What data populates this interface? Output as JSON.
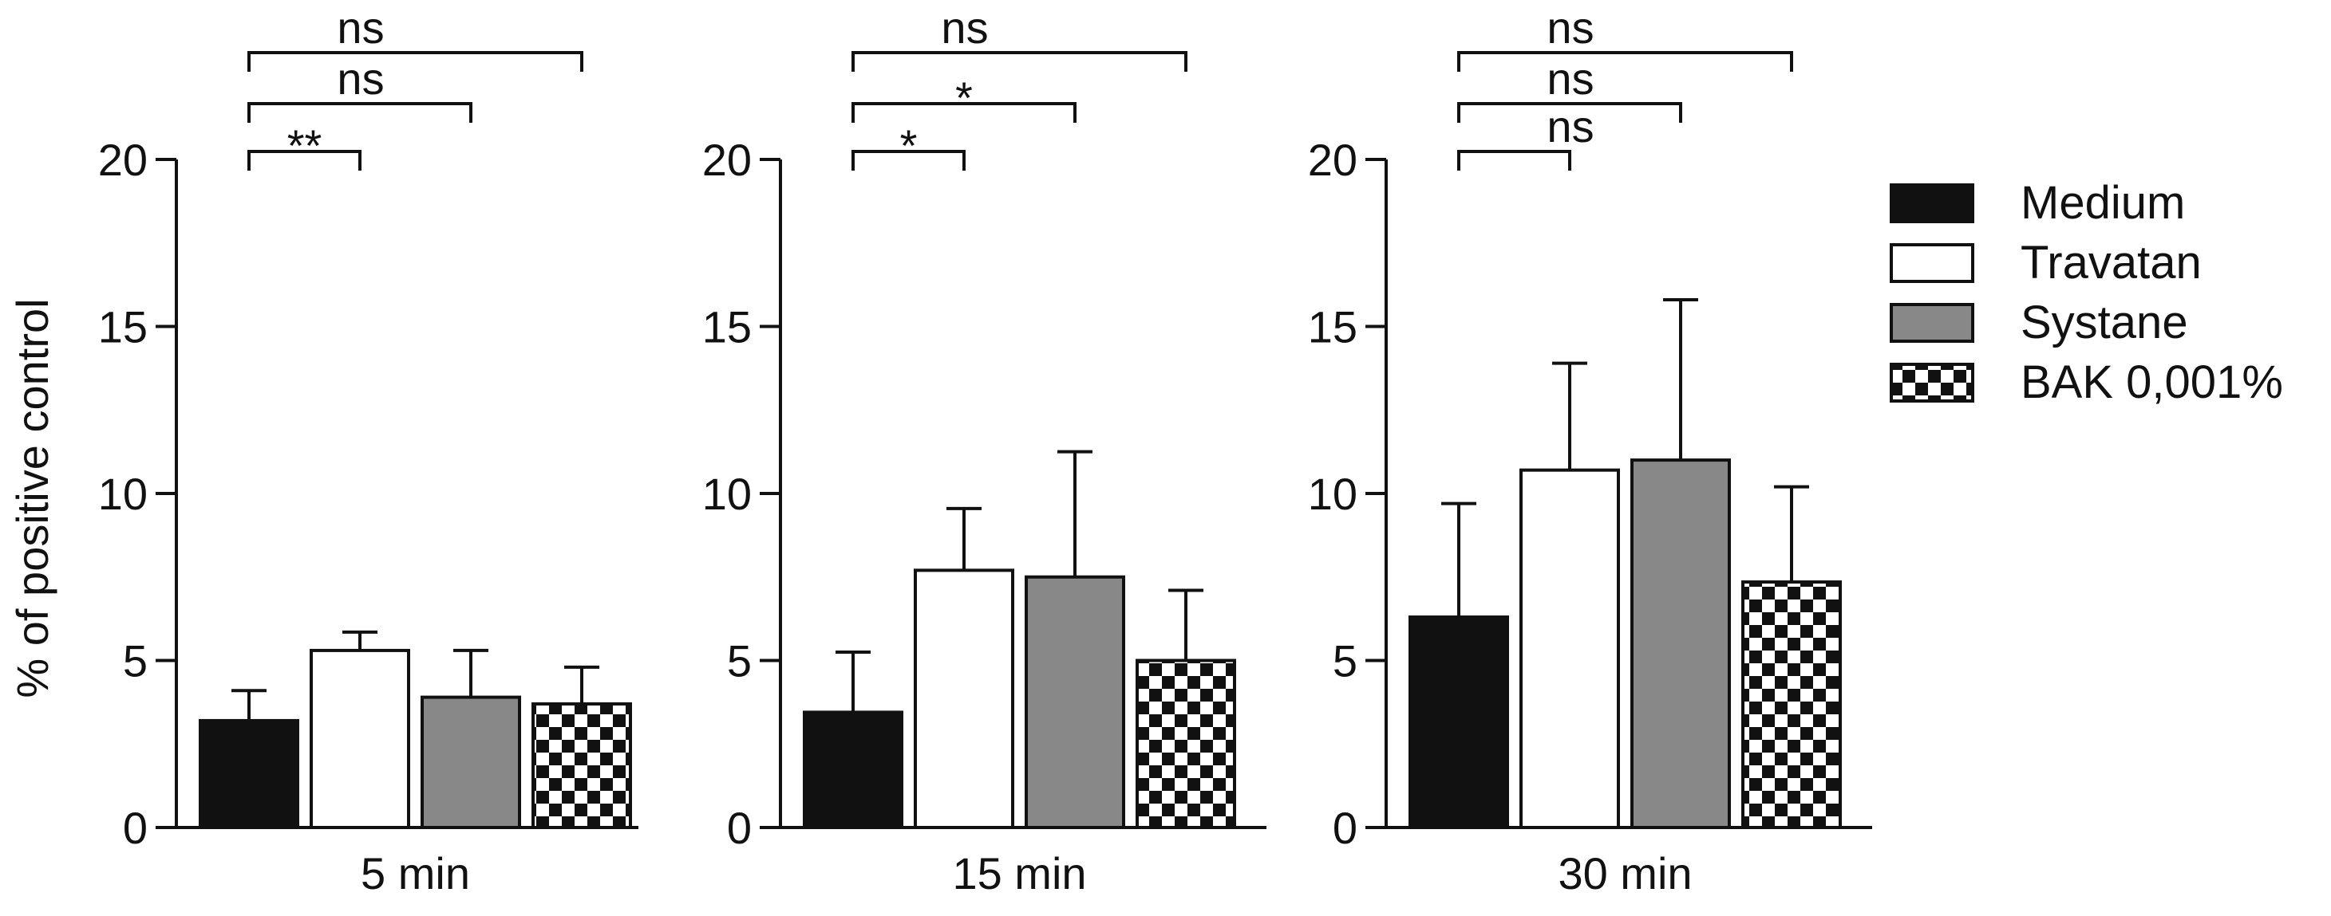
{
  "chart_data": [
    {
      "type": "bar",
      "title": "",
      "xlabel": "5 min",
      "ylabel": "% of positive control",
      "ylim": [
        0,
        20
      ],
      "yticks": [
        0,
        5,
        10,
        15,
        20
      ],
      "categories": [
        "Medium",
        "Travatan",
        "Systane",
        "BAK 0,001%"
      ],
      "series": [
        {
          "name": "mean",
          "values": [
            3.2,
            5.3,
            3.9,
            3.7
          ]
        },
        {
          "name": "error",
          "values": [
            0.9,
            0.55,
            1.4,
            1.1
          ]
        }
      ],
      "comparisons": [
        {
          "from": "Medium",
          "to": "Travatan",
          "label": "**"
        },
        {
          "from": "Medium",
          "to": "Systane",
          "label": "ns"
        },
        {
          "from": "Medium",
          "to": "BAK 0,001%",
          "label": "ns"
        }
      ]
    },
    {
      "type": "bar",
      "title": "",
      "xlabel": "15 min",
      "ylabel": "",
      "ylim": [
        0,
        20
      ],
      "yticks": [
        0,
        5,
        10,
        15,
        20
      ],
      "categories": [
        "Medium",
        "Travatan",
        "Systane",
        "BAK 0,001%"
      ],
      "series": [
        {
          "name": "mean",
          "values": [
            3.45,
            7.7,
            7.5,
            5.0
          ]
        },
        {
          "name": "error",
          "values": [
            1.8,
            1.85,
            3.75,
            2.1
          ]
        }
      ],
      "comparisons": [
        {
          "from": "Medium",
          "to": "Travatan",
          "label": "*"
        },
        {
          "from": "Medium",
          "to": "Systane",
          "label": "*"
        },
        {
          "from": "Medium",
          "to": "BAK 0,001%",
          "label": "ns"
        }
      ]
    },
    {
      "type": "bar",
      "title": "",
      "xlabel": "30 min",
      "ylabel": "",
      "ylim": [
        0,
        20
      ],
      "yticks": [
        0,
        5,
        10,
        15,
        20
      ],
      "categories": [
        "Medium",
        "Travatan",
        "Systane",
        "BAK 0,001%"
      ],
      "series": [
        {
          "name": "mean",
          "values": [
            6.3,
            10.7,
            11.0,
            7.35
          ]
        },
        {
          "name": "error",
          "values": [
            3.4,
            3.2,
            4.8,
            2.85
          ]
        }
      ],
      "comparisons": [
        {
          "from": "Medium",
          "to": "Travatan",
          "label": "ns"
        },
        {
          "from": "Medium",
          "to": "Systane",
          "label": "ns"
        },
        {
          "from": "Medium",
          "to": "BAK 0,001%",
          "label": "ns"
        }
      ]
    }
  ],
  "legend": {
    "placement": "right",
    "items": [
      {
        "label": "Medium",
        "fill": "solid",
        "color": "#111111"
      },
      {
        "label": "Travatan",
        "fill": "solid",
        "color": "#ffffff"
      },
      {
        "label": "Systane",
        "fill": "solid",
        "color": "#888888"
      },
      {
        "label": "BAK 0,001%",
        "fill": "checkered",
        "color": "#111111"
      }
    ]
  },
  "colors": {
    "axis": "#111111",
    "medium": "#111111",
    "travatan": "#ffffff",
    "systane": "#888888",
    "checker": "#111111"
  }
}
